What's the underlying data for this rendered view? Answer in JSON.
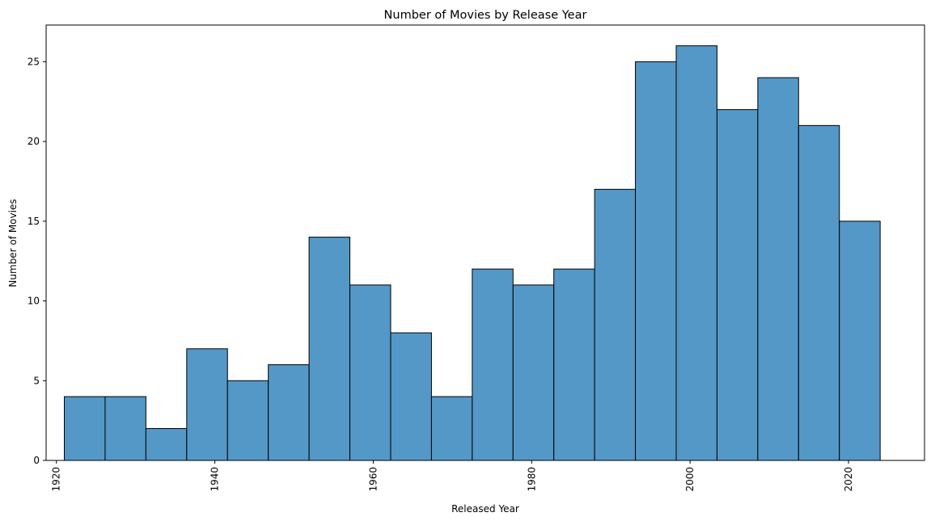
{
  "chart_data": {
    "type": "bar",
    "title": "Number of Movies by Release Year",
    "xlabel": "Released Year",
    "ylabel": "Number of Movies",
    "xlim": [
      1918.7,
      2029.6
    ],
    "ylim": [
      0,
      27.3
    ],
    "grid": false,
    "legend": "none",
    "bar_color": "#5498C7",
    "edge_color": "#000000",
    "x_ticks": [
      {
        "value": 1920,
        "label": "1920"
      },
      {
        "value": 1940,
        "label": "1940"
      },
      {
        "value": 1960,
        "label": "1960"
      },
      {
        "value": 1980,
        "label": "1980"
      },
      {
        "value": 2000,
        "label": "2000"
      },
      {
        "value": 2020,
        "label": "2020"
      }
    ],
    "y_ticks": [
      {
        "value": 0,
        "label": "0"
      },
      {
        "value": 5,
        "label": "5"
      },
      {
        "value": 10,
        "label": "10"
      },
      {
        "value": 15,
        "label": "15"
      },
      {
        "value": 20,
        "label": "20"
      },
      {
        "value": 25,
        "label": "25"
      }
    ],
    "bins": [
      {
        "x0": 1921.0,
        "x1": 1926.15,
        "count": 4
      },
      {
        "x0": 1926.15,
        "x1": 1931.3,
        "count": 4
      },
      {
        "x0": 1931.3,
        "x1": 1936.45,
        "count": 2
      },
      {
        "x0": 1936.45,
        "x1": 1941.6,
        "count": 7
      },
      {
        "x0": 1941.6,
        "x1": 1946.75,
        "count": 5
      },
      {
        "x0": 1946.75,
        "x1": 1951.9,
        "count": 6
      },
      {
        "x0": 1951.9,
        "x1": 1957.05,
        "count": 14
      },
      {
        "x0": 1957.05,
        "x1": 1962.2,
        "count": 11
      },
      {
        "x0": 1962.2,
        "x1": 1967.35,
        "count": 8
      },
      {
        "x0": 1967.35,
        "x1": 1972.5,
        "count": 4
      },
      {
        "x0": 1972.5,
        "x1": 1977.65,
        "count": 12
      },
      {
        "x0": 1977.65,
        "x1": 1982.8,
        "count": 11
      },
      {
        "x0": 1982.8,
        "x1": 1987.95,
        "count": 12
      },
      {
        "x0": 1987.95,
        "x1": 1993.1,
        "count": 17
      },
      {
        "x0": 1993.1,
        "x1": 1998.25,
        "count": 25
      },
      {
        "x0": 1998.25,
        "x1": 2003.4,
        "count": 26
      },
      {
        "x0": 2003.4,
        "x1": 2008.55,
        "count": 22
      },
      {
        "x0": 2008.55,
        "x1": 2013.7,
        "count": 24
      },
      {
        "x0": 2013.7,
        "x1": 2018.85,
        "count": 21
      },
      {
        "x0": 2018.85,
        "x1": 2024.0,
        "count": 15
      }
    ]
  }
}
